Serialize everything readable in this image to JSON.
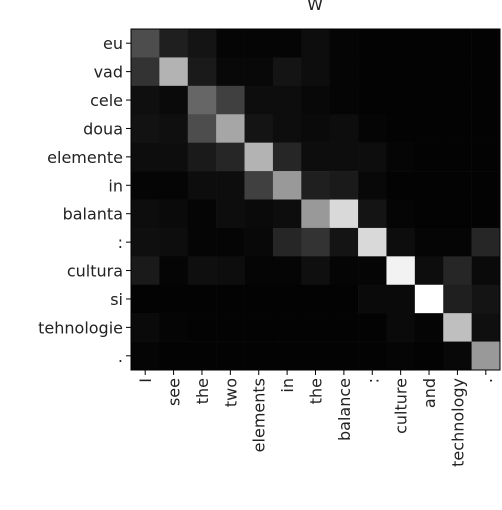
{
  "chart_data": {
    "type": "heatmap",
    "title": "W",
    "colormap": "gray",
    "x": [
      "I",
      "see",
      "the",
      "two",
      "elements",
      "in",
      "the",
      "balance",
      ":",
      "culture",
      "and",
      "technology",
      "."
    ],
    "y": [
      "eu",
      "vad",
      "cele",
      "doua",
      "elemente",
      "in",
      "balanta",
      ":",
      "cultura",
      "si",
      "tehnologie",
      "."
    ],
    "values": [
      [
        0.3,
        0.12,
        0.08,
        0.02,
        0.02,
        0.02,
        0.05,
        0.02,
        0.01,
        0.01,
        0.01,
        0.01,
        0.01
      ],
      [
        0.2,
        0.7,
        0.1,
        0.03,
        0.03,
        0.08,
        0.05,
        0.02,
        0.01,
        0.01,
        0.01,
        0.01,
        0.01
      ],
      [
        0.06,
        0.04,
        0.4,
        0.25,
        0.05,
        0.05,
        0.03,
        0.02,
        0.01,
        0.01,
        0.01,
        0.01,
        0.01
      ],
      [
        0.07,
        0.06,
        0.3,
        0.65,
        0.08,
        0.05,
        0.04,
        0.05,
        0.02,
        0.01,
        0.01,
        0.01,
        0.01
      ],
      [
        0.05,
        0.05,
        0.1,
        0.15,
        0.7,
        0.15,
        0.05,
        0.05,
        0.05,
        0.02,
        0.01,
        0.01,
        0.01
      ],
      [
        0.02,
        0.02,
        0.05,
        0.05,
        0.25,
        0.6,
        0.12,
        0.1,
        0.03,
        0.01,
        0.01,
        0.01,
        0.01
      ],
      [
        0.05,
        0.04,
        0.02,
        0.05,
        0.04,
        0.05,
        0.6,
        0.85,
        0.08,
        0.02,
        0.01,
        0.01,
        0.01
      ],
      [
        0.06,
        0.05,
        0.02,
        0.02,
        0.03,
        0.15,
        0.2,
        0.08,
        0.85,
        0.05,
        0.02,
        0.02,
        0.15
      ],
      [
        0.1,
        0.02,
        0.06,
        0.05,
        0.02,
        0.02,
        0.06,
        0.02,
        0.02,
        0.95,
        0.05,
        0.15,
        0.04
      ],
      [
        0.01,
        0.01,
        0.01,
        0.01,
        0.01,
        0.01,
        0.01,
        0.01,
        0.04,
        0.04,
        1.0,
        0.12,
        0.08
      ],
      [
        0.04,
        0.02,
        0.01,
        0.01,
        0.01,
        0.01,
        0.01,
        0.01,
        0.01,
        0.04,
        0.02,
        0.75,
        0.06
      ],
      [
        0.02,
        0.01,
        0.01,
        0.01,
        0.01,
        0.01,
        0.01,
        0.01,
        0.01,
        0.02,
        0.01,
        0.03,
        0.6
      ]
    ]
  }
}
